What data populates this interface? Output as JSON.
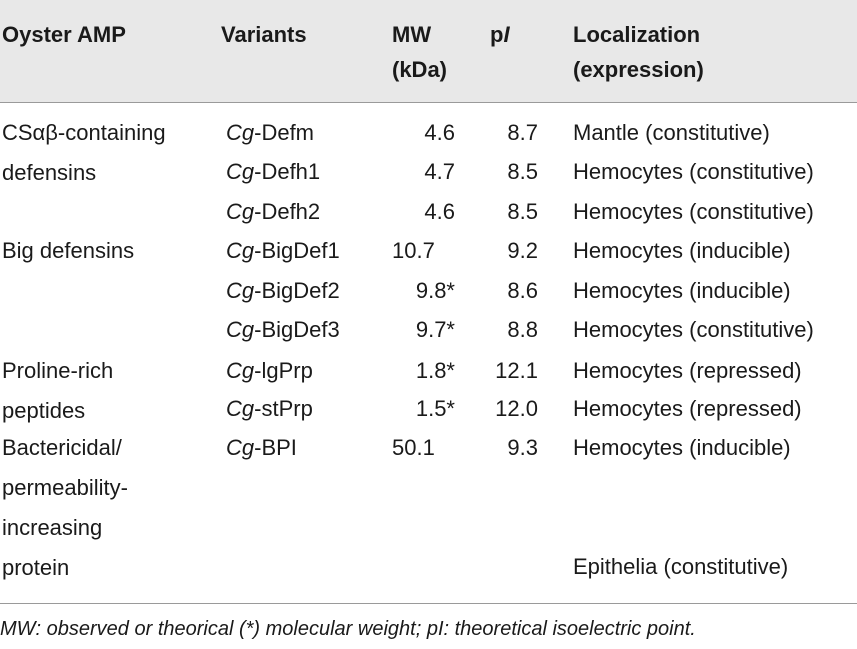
{
  "table": {
    "headers": {
      "amp": "Oyster AMP",
      "variants": "Variants",
      "mw_line1": "MW",
      "mw_line2": "(kDa)",
      "pi_p": "p",
      "pi_i": "I",
      "loc_line1": "Localization",
      "loc_line2": "(expression)"
    },
    "groups": [
      {
        "lines": [
          "CSαβ-containing",
          "defensins"
        ]
      },
      {
        "lines": [
          "Big defensins"
        ]
      },
      {
        "lines": [
          "Proline-rich",
          "peptides"
        ]
      },
      {
        "lines": [
          "Bactericidal/",
          "permeability-",
          "increasing",
          "protein"
        ]
      }
    ],
    "rows": [
      {
        "prefix": "Cg",
        "name": "-Defm",
        "mw": "4.6",
        "pi": "8.7",
        "loc": "Mantle (constitutive)"
      },
      {
        "prefix": "Cg",
        "name": "-Defh1",
        "mw": "4.7",
        "pi": "8.5",
        "loc": "Hemocytes (constitutive)"
      },
      {
        "prefix": "Cg",
        "name": "-Defh2",
        "mw": "4.6",
        "pi": "8.5",
        "loc": "Hemocytes (constitutive)"
      },
      {
        "prefix": "Cg",
        "name": "-BigDef1",
        "mw": "10.7",
        "pi": "9.2",
        "loc": "Hemocytes (inducible)"
      },
      {
        "prefix": "Cg",
        "name": "-BigDef2",
        "mw": "9.8*",
        "pi": "8.6",
        "loc": "Hemocytes (inducible)"
      },
      {
        "prefix": "Cg",
        "name": "-BigDef3",
        "mw": "9.7*",
        "pi": "8.8",
        "loc": "Hemocytes (constitutive)"
      },
      {
        "prefix": "Cg",
        "name": "-lgPrp",
        "mw": "1.8*",
        "pi": "12.1",
        "loc": "Hemocytes (repressed)"
      },
      {
        "prefix": "Cg",
        "name": "-stPrp",
        "mw": "1.5*",
        "pi": "12.0",
        "loc": "Hemocytes (repressed)"
      },
      {
        "prefix": "Cg",
        "name": "-BPI",
        "mw": "50.1",
        "pi": "9.3",
        "loc": "Hemocytes (inducible)"
      }
    ],
    "extra_loc": "Epithelia (constitutive)"
  },
  "footnote": "MW: observed or theorical (*) molecular weight; pI: theoretical isoelectric point."
}
